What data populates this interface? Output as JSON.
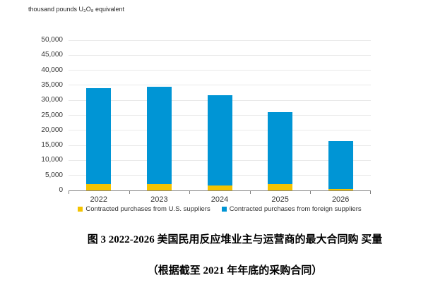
{
  "unit_label": "thousand pounds U₃O₈ equivalent",
  "chart_data": {
    "type": "bar",
    "stacked": true,
    "categories": [
      "2022",
      "2023",
      "2024",
      "2025",
      "2026"
    ],
    "series": [
      {
        "name": "Contracted purchases from U.S. suppliers",
        "color": "#f4c300",
        "values": [
          2000,
          2100,
          1600,
          2200,
          450
        ]
      },
      {
        "name": "Contracted purchases from foreign suppliers",
        "color": "#0095d5",
        "values": [
          32000,
          32500,
          30000,
          23900,
          16000
        ]
      }
    ],
    "totals": [
      34000,
      34600,
      31600,
      26100,
      16450
    ],
    "title": "",
    "xlabel": "",
    "ylabel": "thousand pounds U₃O₈ equivalent",
    "ylim": [
      0,
      50000
    ],
    "y_ticks": [
      0,
      5000,
      10000,
      15000,
      20000,
      25000,
      30000,
      35000,
      40000,
      45000,
      50000
    ],
    "y_tick_labels": [
      "0",
      "5,000",
      "10,000",
      "15,000",
      "20,000",
      "25,000",
      "30,000",
      "35,000",
      "40,000",
      "45,000",
      "50,000"
    ],
    "grid": true,
    "legend_position": "bottom"
  },
  "captions": {
    "line1": "图 3 2022-2026 美国民用反应堆业主与运营商的最大合同购 买量",
    "line2": "（根据截至 2021 年年底的采购合同）"
  },
  "colors": {
    "us_suppliers": "#f4c300",
    "foreign_suppliers": "#0095d5",
    "gridline": "#e9e9e9",
    "axis": "#808080",
    "label_text": "#363636"
  }
}
